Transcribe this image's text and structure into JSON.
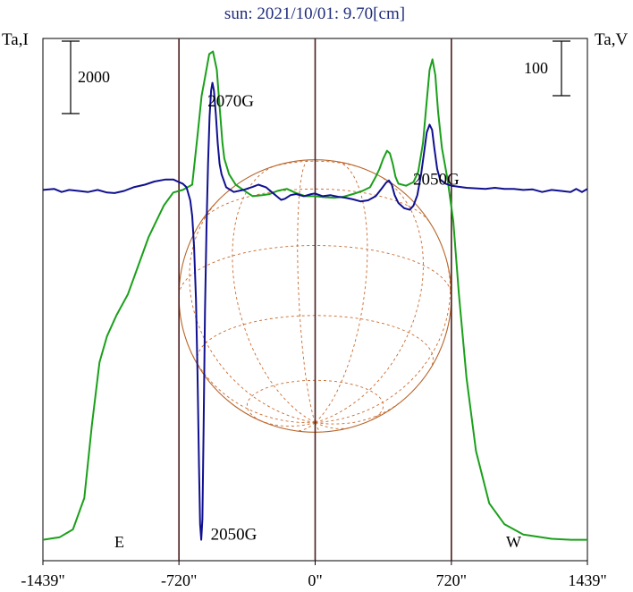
{
  "chart_data": {
    "type": "line",
    "title": "sun: 2021/10/01: 9.70[cm]",
    "left_axis_label": "Ta,I",
    "right_axis_label": "Ta,V",
    "left_scale_bar": "2000",
    "right_scale_bar": "100",
    "east_label": "E",
    "west_label": "W",
    "xlim": [
      -1439,
      1439
    ],
    "x_ticks": [
      {
        "value": -1439,
        "label": "-1439\""
      },
      {
        "value": -720,
        "label": "-720\""
      },
      {
        "value": 0,
        "label": "0\""
      },
      {
        "value": 720,
        "label": "720\""
      },
      {
        "value": 1439,
        "label": "1439\""
      }
    ],
    "vertical_lines": [
      -720,
      0,
      720
    ],
    "solar_disk_radius": 720,
    "annotations": [
      {
        "text": "2070G",
        "x": -446,
        "y": 0.87
      },
      {
        "text": "2050G",
        "x": -430,
        "y": 0.04
      },
      {
        "text": "2050G",
        "x": 640,
        "y": 0.72
      }
    ],
    "series": [
      {
        "color": "#1aa01a",
        "points": [
          [
            -1439,
            0.04
          ],
          [
            -1350,
            0.045
          ],
          [
            -1280,
            0.06
          ],
          [
            -1220,
            0.12
          ],
          [
            -1180,
            0.26
          ],
          [
            -1140,
            0.38
          ],
          [
            -1100,
            0.43
          ],
          [
            -1050,
            0.47
          ],
          [
            -990,
            0.51
          ],
          [
            -940,
            0.56
          ],
          [
            -880,
            0.62
          ],
          [
            -800,
            0.68
          ],
          [
            -750,
            0.705
          ],
          [
            -700,
            0.71
          ],
          [
            -650,
            0.72
          ],
          [
            -620,
            0.82
          ],
          [
            -600,
            0.89
          ],
          [
            -580,
            0.93
          ],
          [
            -560,
            0.97
          ],
          [
            -540,
            0.975
          ],
          [
            -520,
            0.94
          ],
          [
            -505,
            0.87
          ],
          [
            -490,
            0.8
          ],
          [
            -480,
            0.77
          ],
          [
            -455,
            0.74
          ],
          [
            -420,
            0.72
          ],
          [
            -380,
            0.71
          ],
          [
            -330,
            0.698
          ],
          [
            -280,
            0.7
          ],
          [
            -240,
            0.702
          ],
          [
            -200,
            0.708
          ],
          [
            -150,
            0.712
          ],
          [
            -100,
            0.704
          ],
          [
            -50,
            0.698
          ],
          [
            0,
            0.698
          ],
          [
            50,
            0.696
          ],
          [
            100,
            0.695
          ],
          [
            150,
            0.697
          ],
          [
            200,
            0.702
          ],
          [
            250,
            0.708
          ],
          [
            290,
            0.715
          ],
          [
            320,
            0.735
          ],
          [
            340,
            0.75
          ],
          [
            360,
            0.77
          ],
          [
            380,
            0.785
          ],
          [
            395,
            0.78
          ],
          [
            410,
            0.76
          ],
          [
            425,
            0.735
          ],
          [
            440,
            0.722
          ],
          [
            480,
            0.718
          ],
          [
            520,
            0.725
          ],
          [
            545,
            0.745
          ],
          [
            570,
            0.8
          ],
          [
            590,
            0.88
          ],
          [
            605,
            0.94
          ],
          [
            620,
            0.96
          ],
          [
            635,
            0.93
          ],
          [
            650,
            0.86
          ],
          [
            670,
            0.79
          ],
          [
            700,
            0.73
          ],
          [
            730,
            0.65
          ],
          [
            760,
            0.51
          ],
          [
            800,
            0.35
          ],
          [
            850,
            0.21
          ],
          [
            920,
            0.11
          ],
          [
            1000,
            0.07
          ],
          [
            1100,
            0.05
          ],
          [
            1250,
            0.042
          ],
          [
            1350,
            0.04
          ],
          [
            1439,
            0.04
          ]
        ]
      },
      {
        "color": "#101090",
        "points": [
          [
            -1439,
            0.71
          ],
          [
            -1380,
            0.712
          ],
          [
            -1340,
            0.706
          ],
          [
            -1300,
            0.71
          ],
          [
            -1250,
            0.708
          ],
          [
            -1200,
            0.706
          ],
          [
            -1150,
            0.71
          ],
          [
            -1100,
            0.705
          ],
          [
            -1060,
            0.704
          ],
          [
            -1010,
            0.708
          ],
          [
            -960,
            0.715
          ],
          [
            -900,
            0.72
          ],
          [
            -850,
            0.726
          ],
          [
            -790,
            0.73
          ],
          [
            -750,
            0.73
          ],
          [
            -720,
            0.725
          ],
          [
            -700,
            0.722
          ],
          [
            -680,
            0.715
          ],
          [
            -660,
            0.69
          ],
          [
            -650,
            0.66
          ],
          [
            -640,
            0.6
          ],
          [
            -630,
            0.5
          ],
          [
            -622,
            0.36
          ],
          [
            -614,
            0.18
          ],
          [
            -608,
            0.07
          ],
          [
            -602,
            0.04
          ],
          [
            -596,
            0.08
          ],
          [
            -590,
            0.25
          ],
          [
            -582,
            0.48
          ],
          [
            -574,
            0.64
          ],
          [
            -566,
            0.76
          ],
          [
            -558,
            0.85
          ],
          [
            -550,
            0.9
          ],
          [
            -543,
            0.915
          ],
          [
            -535,
            0.9
          ],
          [
            -525,
            0.855
          ],
          [
            -515,
            0.8
          ],
          [
            -505,
            0.76
          ],
          [
            -495,
            0.74
          ],
          [
            -470,
            0.715
          ],
          [
            -430,
            0.706
          ],
          [
            -380,
            0.71
          ],
          [
            -330,
            0.716
          ],
          [
            -300,
            0.72
          ],
          [
            -260,
            0.715
          ],
          [
            -230,
            0.706
          ],
          [
            -200,
            0.697
          ],
          [
            -180,
            0.691
          ],
          [
            -160,
            0.693
          ],
          [
            -130,
            0.7
          ],
          [
            -100,
            0.702
          ],
          [
            -60,
            0.698
          ],
          [
            -20,
            0.702
          ],
          [
            0,
            0.703
          ],
          [
            40,
            0.698
          ],
          [
            80,
            0.7
          ],
          [
            120,
            0.697
          ],
          [
            160,
            0.695
          ],
          [
            200,
            0.692
          ],
          [
            240,
            0.688
          ],
          [
            280,
            0.69
          ],
          [
            320,
            0.698
          ],
          [
            350,
            0.712
          ],
          [
            375,
            0.724
          ],
          [
            390,
            0.728
          ],
          [
            405,
            0.72
          ],
          [
            420,
            0.7
          ],
          [
            440,
            0.685
          ],
          [
            470,
            0.675
          ],
          [
            500,
            0.672
          ],
          [
            520,
            0.68
          ],
          [
            540,
            0.7
          ],
          [
            560,
            0.74
          ],
          [
            575,
            0.78
          ],
          [
            590,
            0.82
          ],
          [
            605,
            0.835
          ],
          [
            618,
            0.825
          ],
          [
            630,
            0.79
          ],
          [
            645,
            0.75
          ],
          [
            660,
            0.73
          ],
          [
            690,
            0.722
          ],
          [
            720,
            0.718
          ],
          [
            760,
            0.716
          ],
          [
            800,
            0.714
          ],
          [
            850,
            0.713
          ],
          [
            900,
            0.712
          ],
          [
            950,
            0.714
          ],
          [
            1000,
            0.712
          ],
          [
            1050,
            0.712
          ],
          [
            1100,
            0.71
          ],
          [
            1150,
            0.711
          ],
          [
            1200,
            0.706
          ],
          [
            1250,
            0.71
          ],
          [
            1300,
            0.708
          ],
          [
            1350,
            0.706
          ],
          [
            1380,
            0.712
          ],
          [
            1410,
            0.706
          ],
          [
            1439,
            0.712
          ]
        ]
      }
    ]
  }
}
